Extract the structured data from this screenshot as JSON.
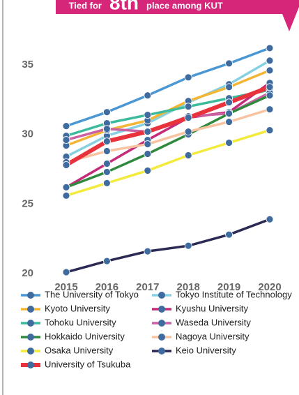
{
  "chart_data": {
    "type": "line",
    "annotation": [
      "Tied for",
      "8th",
      "place among KUT"
    ],
    "categories": [
      "2015",
      "2016",
      "2017",
      "2018",
      "2019",
      "2020"
    ],
    "ylim": [
      19.6,
      37.5
    ],
    "yticks": [
      20,
      25,
      30,
      35
    ],
    "grid": false,
    "series": [
      {
        "name": "The University of Tokyo",
        "color": "#4a97d3",
        "values": [
          30.6,
          31.6,
          32.8,
          34.1,
          35.1,
          36.2
        ]
      },
      {
        "name": "Tokyo Institute of Technology",
        "color": "#86d0e2",
        "values": [
          28.4,
          29.9,
          30.8,
          32.3,
          33.6,
          35.3
        ]
      },
      {
        "name": "Kyoto University",
        "color": "#f5b534",
        "values": [
          29.2,
          30.3,
          31.0,
          32.4,
          33.4,
          34.6
        ]
      },
      {
        "name": "Kyushu University",
        "color": "#c42c7a",
        "values": [
          26.2,
          27.9,
          29.6,
          31.2,
          31.6,
          33.7
        ]
      },
      {
        "name": "Tohoku University",
        "color": "#3cbb9c",
        "values": [
          29.9,
          30.8,
          31.4,
          32.0,
          32.6,
          33.2
        ]
      },
      {
        "name": "Waseda University",
        "color": "#c962a2",
        "values": [
          29.6,
          30.4,
          30.2,
          31.3,
          31.5,
          33.0
        ]
      },
      {
        "name": "Hokkaido University",
        "color": "#2f8a3e",
        "values": [
          26.2,
          27.3,
          28.6,
          30.0,
          31.5,
          32.8
        ]
      },
      {
        "name": "Nagoya University",
        "color": "#f7c3a0",
        "values": [
          28.0,
          28.8,
          29.3,
          30.2,
          30.9,
          31.8
        ]
      },
      {
        "name": "Osaka University",
        "color": "#f2ea3c",
        "values": [
          25.6,
          26.5,
          27.4,
          28.5,
          29.4,
          30.3
        ]
      },
      {
        "name": "Keio University",
        "color": "#2b2a55",
        "values": [
          20.1,
          20.9,
          21.6,
          22.0,
          22.8,
          23.9
        ]
      },
      {
        "name": "University of Tsukuba",
        "color": "#e8333c",
        "values": [
          27.8,
          29.5,
          30.2,
          31.2,
          32.3,
          33.4
        ]
      }
    ]
  }
}
